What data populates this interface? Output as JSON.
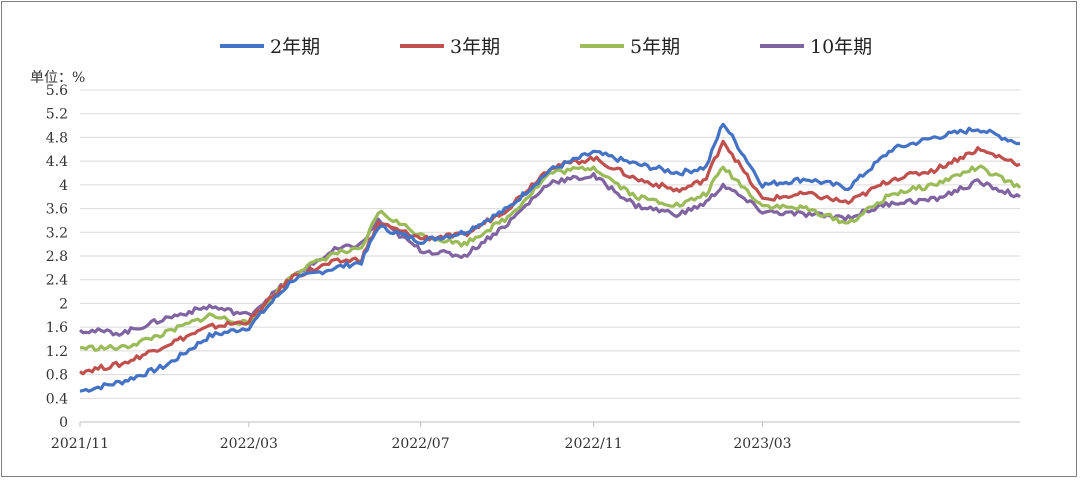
{
  "chart_data": {
    "type": "line",
    "ylabel": "单位：%",
    "ylim": [
      0,
      5.6
    ],
    "yticks": [
      "5.6",
      "5.2",
      "4.8",
      "4.4",
      "4",
      "3.6",
      "3.2",
      "2.8",
      "2.4",
      "2",
      "1.6",
      "1.2",
      "0.8",
      "0.4",
      "0"
    ],
    "xticks": [
      "2021/11",
      "2022/03",
      "2022/07",
      "2022/11",
      "2023/03"
    ],
    "grid": true,
    "legend_position": "top",
    "x": [
      "2021-11-01",
      "2021-12-01",
      "2022-01-01",
      "2022-02-01",
      "2022-03-01",
      "2022-04-01",
      "2022-05-01",
      "2022-05-20",
      "2022-06-01",
      "2022-07-01",
      "2022-08-01",
      "2022-09-01",
      "2022-10-01",
      "2022-11-01",
      "2022-12-01",
      "2023-01-01",
      "2023-01-20",
      "2023-02-01",
      "2023-03-01",
      "2023-04-01",
      "2023-05-01",
      "2023-06-01",
      "2023-07-01",
      "2023-08-01",
      "2023-08-31"
    ],
    "series": [
      {
        "name": "2年期",
        "color": "#4472C4",
        "values": [
          0.52,
          0.68,
          0.95,
          1.45,
          1.6,
          2.4,
          2.6,
          2.7,
          3.3,
          3.05,
          3.2,
          3.6,
          4.25,
          4.55,
          4.35,
          4.2,
          4.3,
          5.05,
          4.0,
          4.1,
          3.95,
          4.6,
          4.8,
          4.95,
          4.7
        ]
      },
      {
        "name": "3年期",
        "color": "#C0504D",
        "values": [
          0.85,
          0.98,
          1.3,
          1.6,
          1.7,
          2.45,
          2.7,
          2.75,
          3.35,
          3.1,
          3.15,
          3.6,
          4.3,
          4.45,
          4.1,
          3.9,
          4.1,
          4.75,
          3.75,
          3.85,
          3.7,
          4.1,
          4.25,
          4.6,
          4.35
        ]
      },
      {
        "name": "5年期",
        "color": "#9BBB59",
        "values": [
          1.25,
          1.25,
          1.5,
          1.8,
          1.65,
          2.5,
          2.85,
          2.9,
          3.55,
          3.15,
          3.0,
          3.45,
          4.2,
          4.3,
          3.8,
          3.65,
          3.85,
          4.3,
          3.65,
          3.6,
          3.35,
          3.85,
          4.0,
          4.3,
          3.95
        ]
      },
      {
        "name": "10年期",
        "color": "#8064A2",
        "values": [
          1.55,
          1.5,
          1.75,
          1.95,
          1.8,
          2.45,
          2.9,
          3.0,
          3.4,
          2.9,
          2.8,
          3.35,
          4.05,
          4.15,
          3.65,
          3.5,
          3.7,
          4.0,
          3.55,
          3.5,
          3.45,
          3.7,
          3.75,
          4.05,
          3.8
        ]
      }
    ]
  }
}
